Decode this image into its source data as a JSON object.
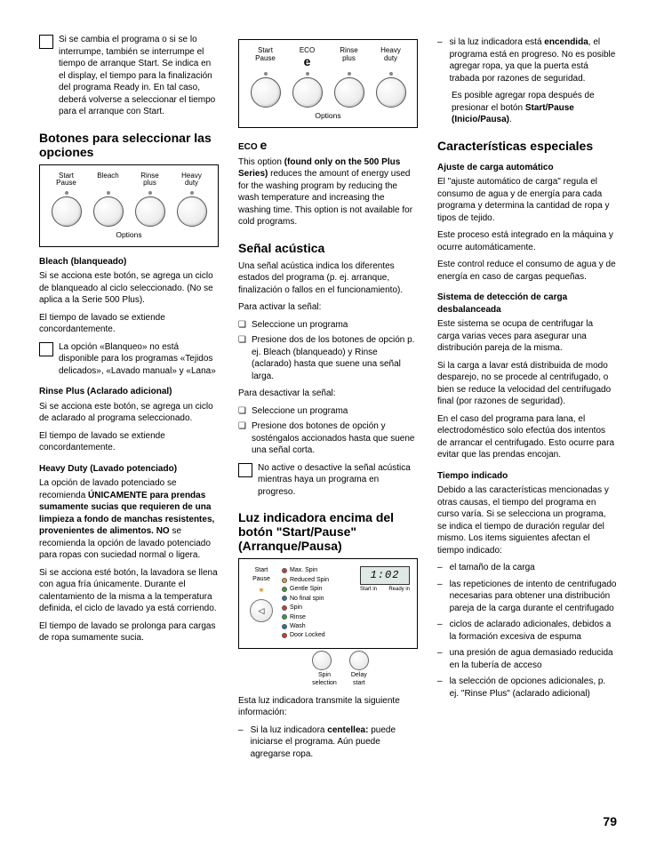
{
  "page_number": "79",
  "col1": {
    "note1": "Si se cambia el programa o si se lo interrumpe, también se interrumpe el tiempo de arranque Start. Se indica en el display, el tiempo para la finalización del programa Ready in. En tal caso, deberá volverse a seleccionar el tiempo para el arranque con Start.",
    "h_botones": "Botones para seleccionar las opciones",
    "panel1": {
      "labels": [
        "Start\nPause",
        "Bleach",
        "Rinse\nplus",
        "Heavy\nduty"
      ],
      "footer": "Options"
    },
    "h_bleach": "Bleach (blanqueado)",
    "p_bleach1": "Si se acciona este botón, se agrega un ciclo de blanqueado al ciclo seleccionado. (No se aplica a la Serie 500 Plus).",
    "p_bleach2": "El tiempo de lavado se extiende concordantemente.",
    "note_bleach": "La opción «Blanqueo» no está disponible para los programas «Tejidos delicados», «Lavado manual» y «Lana»",
    "h_rinse": "Rinse Plus (Aclarado adicional)",
    "p_rinse1": "Si se acciona este botón, se agrega un ciclo de aclarado al programa seleccionado.",
    "p_rinse2": "El tiempo de lavado se extiende concordantemente.",
    "h_heavy": "Heavy Duty (Lavado potenciado)",
    "p_heavy1a": "La opción de lavado potenciado se recomienda ",
    "p_heavy1b": "ÚNICAMENTE para prendas sumamente sucias que requieren de una limpieza a fondo de manchas resistentes, provenientes de alimentos.  NO",
    "p_heavy1c": " se recomienda la opción de lavado potenciado para ropas con suciedad normal o ligera.",
    "p_heavy2": "Si se acciona esté botón, la lavadora se llena con agua fría únicamente. Durante el calentamiento de la misma a la temperatura definida, el ciclo de lavado ya está corriendo.",
    "p_heavy3": "El tiempo de lavado se prolonga para cargas de ropa sumamente sucia."
  },
  "col2": {
    "panel2": {
      "labels": [
        "Start\nPause",
        "ECO",
        "Rinse\nplus",
        "Heavy\nduty"
      ],
      "footer": "Options"
    },
    "h_eco": "ECO e",
    "p_eco_a": "This option ",
    "p_eco_b": "(found only on the 500 Plus Series)",
    "p_eco_c": " reduces the amount of energy used for the washing program by reducing the wash temperature and increasing the washing time.  This option is not available for cold programs.",
    "h_senal": "Señal acústica",
    "p_senal1": "Una señal acústica indica los diferentes estados del programa (p. ej. arranque, finalización o fallos en el funcionamiento).",
    "p_senal2": "Para activar la señal:",
    "chk1_a": "Seleccione un programa",
    "chk1_b": "Presione dos de los botones de opción p. ej. Bleach (blanqueado) y Rinse (aclarado) hasta que suene una señal larga.",
    "p_senal3": "Para desactivar la señal:",
    "chk2_a": "Seleccione un programa",
    "chk2_b": "Presione dos botones de opción y sosténgalos accionados hasta que suene una señal corta.",
    "note_senal": "No active o desactive la señal acústica mientras haya un programa en progreso.",
    "h_luz": "Luz indicadora encima del botón \"Start/Pause\" (Arranque/Pausa)",
    "sp": {
      "start_pause": "Start\nPause",
      "opts": [
        "Max. Spin",
        "Reduced Spin",
        "Gentle Spin",
        "No final spin",
        "Spin",
        "Rinse",
        "Wash",
        "Door Locked"
      ],
      "colors": [
        "#d33",
        "#e39a2b",
        "#3a9b3a",
        "#2b6fb3",
        "#d33",
        "#3a9b3a",
        "#2b6fb3",
        "#d33"
      ],
      "spin_sel": "Spin\nselection",
      "delay": "Delay\nstart",
      "lcd": "1:02",
      "start_in": "Start in",
      "ready_in": "Ready in"
    },
    "p_luz1": "Esta luz indicadora transmite la siguiente información:",
    "dash_luz_a_pre": "Si la luz indicadora ",
    "dash_luz_a_b": "centellea:",
    "dash_luz_a_post": " puede iniciarse el programa. Aún puede agregarse ropa."
  },
  "col3": {
    "dash_top_pre": "si la luz indicadora está ",
    "dash_top_b": "encendida",
    "dash_top_post": ", el programa está en progreso. No es posible agregar ropa, ya que la puerta está trabada por razones de seguridad.",
    "p_after_a": "Es posible agregar ropa después de presionar el botón ",
    "p_after_b": "Start/Pause (Inicio/Pausa)",
    "p_after_c": ".",
    "h_carac": "Características especiales",
    "h_ajuste": "Ajuste de carga automático",
    "p_ajuste1": "El \"ajuste automático de carga\" regula el consumo de agua y de energía para cada programa y determina la cantidad de ropa y tipos de tejido.",
    "p_ajuste2": "Este proceso está integrado en la máquina y ocurre automáticamente.",
    "p_ajuste3": "Este control reduce el consumo de agua y de energía en caso de cargas pequeñas.",
    "h_sist": "Sistema de detección de carga desbalanceada",
    "p_sist1": "Este sistema se ocupa de centrifugar la carga varias veces para asegurar una distribución pareja de la misma.",
    "p_sist2": "Si la carga a lavar está distribuida de modo desparejo, no se procede al centrifugado, o bien se reduce la velocidad del centrifugado final (por razones de seguridad).",
    "p_sist3": "En el caso del programa para lana, el electrodoméstico solo efectúa dos intentos de arrancar el centrifugado. Esto ocurre para evitar que las prendas encojan.",
    "h_tiempo": "Tiempo indicado",
    "p_tiempo1": "Debido a las características mencionadas y otras causas, el tiempo del programa en curso varía. Si se selecciona un programa, se indica el tiempo de duración regular del mismo. Los items siguientes afectan el tiempo indicado:",
    "d1": "el tamaño de la carga",
    "d2": "las repeticiones de intento de centrifugado necesarias para obtener una distribución pareja de la carga durante el centrifugado",
    "d3": "ciclos de aclarado adicionales, debidos a la formación excesiva de espuma",
    "d4": "una presión de agua demasiado reducida en la tubería de acceso",
    "d5": "la selección de opciones adicionales, p. ej. \"Rinse Plus\" (aclarado adicional)"
  }
}
